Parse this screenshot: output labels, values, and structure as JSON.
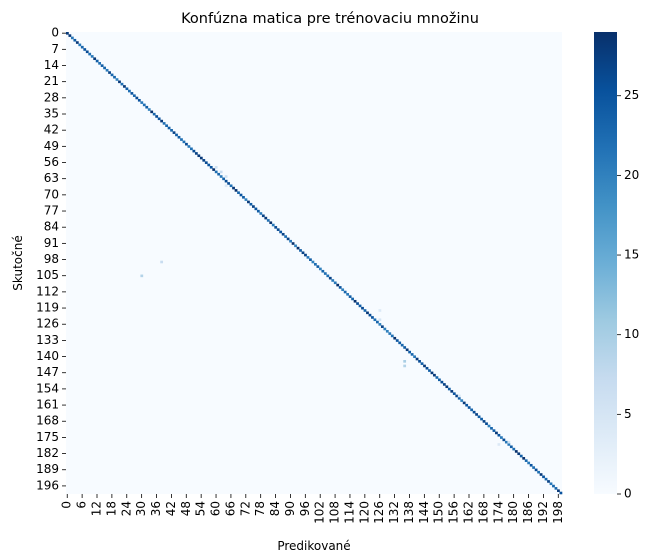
{
  "chart_data": {
    "type": "heatmap",
    "title": "Konfúzna matica pre trénovaciu množinu",
    "xlabel": "Predikované",
    "ylabel": "Skutočné",
    "n_classes": 200,
    "x_tick_labels": [
      "0",
      "6",
      "12",
      "18",
      "24",
      "30",
      "36",
      "42",
      "48",
      "54",
      "60",
      "66",
      "72",
      "78",
      "84",
      "90",
      "96",
      "102",
      "108",
      "114",
      "120",
      "126",
      "132",
      "138",
      "144",
      "150",
      "156",
      "162",
      "168",
      "174",
      "180",
      "186",
      "192",
      "198"
    ],
    "y_tick_labels": [
      "0",
      "7",
      "14",
      "21",
      "28",
      "35",
      "42",
      "49",
      "56",
      "63",
      "70",
      "77",
      "84",
      "91",
      "98",
      "105",
      "112",
      "119",
      "126",
      "133",
      "140",
      "147",
      "154",
      "161",
      "168",
      "175",
      "182",
      "189",
      "196"
    ],
    "diagonal_value_range": [
      20,
      29
    ],
    "off_diagonal_typical_value": 0,
    "notable_off_diagonal_cells": [
      {
        "actual": 105,
        "predicted": 30,
        "value": 9
      },
      {
        "actual": 99,
        "predicted": 38,
        "value": 7
      },
      {
        "actual": 58,
        "predicted": 60,
        "value": 6
      },
      {
        "actual": 60,
        "predicted": 62,
        "value": 7
      },
      {
        "actual": 62,
        "predicted": 64,
        "value": 6
      },
      {
        "actual": 142,
        "predicted": 136,
        "value": 10
      },
      {
        "actual": 144,
        "predicted": 136,
        "value": 9
      },
      {
        "actual": 124,
        "predicted": 126,
        "value": 5
      },
      {
        "actual": 120,
        "predicted": 126,
        "value": 4
      },
      {
        "actual": 177,
        "predicted": 178,
        "value": 6
      },
      {
        "actual": 178,
        "predicted": 174,
        "value": 4
      },
      {
        "actual": 157,
        "predicted": 158,
        "value": 5
      },
      {
        "actual": 66,
        "predicted": 64,
        "value": 4
      }
    ],
    "colorbar": {
      "colormap": "Blues",
      "min": 0,
      "max": 29,
      "tick_labels": [
        "0",
        "5",
        "10",
        "15",
        "20",
        "25"
      ],
      "tick_values": [
        0,
        5,
        10,
        15,
        20,
        25
      ]
    },
    "grid": false,
    "legend": "colorbar-right"
  }
}
